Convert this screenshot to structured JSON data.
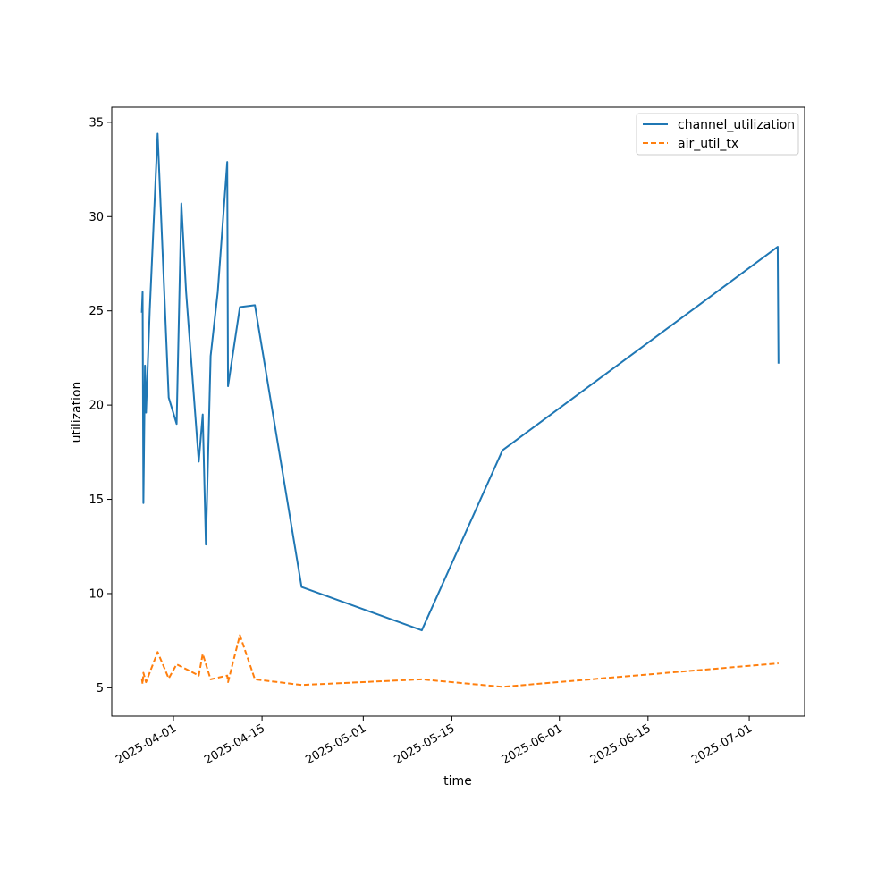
{
  "chart_data": {
    "type": "line",
    "title": "",
    "xlabel": "time",
    "ylabel": "utilization",
    "x_type": "date",
    "xlim": [
      "2025-03-22T06:00",
      "2025-07-09T18:00"
    ],
    "ylim": [
      3.5,
      35.8
    ],
    "xticks": [
      "2025-04-01",
      "2025-04-15",
      "2025-05-01",
      "2025-05-15",
      "2025-06-01",
      "2025-06-15",
      "2025-07-01"
    ],
    "xtick_labels": [
      "2025-04-01",
      "2025-04-15",
      "2025-05-01",
      "2025-05-15",
      "2025-06-01",
      "2025-06-15",
      "2025-07-01"
    ],
    "yticks": [
      5,
      10,
      15,
      20,
      25,
      30,
      35
    ],
    "ytick_labels": [
      "5",
      "10",
      "15",
      "20",
      "25",
      "30",
      "35"
    ],
    "grid": false,
    "legend": {
      "position": "top-right",
      "entries": [
        "channel_utilization",
        "air_util_tx"
      ]
    },
    "series": [
      {
        "name": "channel_utilization",
        "color": "#1f77b4",
        "style": "solid",
        "points": [
          [
            "2025-03-27T00:00",
            24.9
          ],
          [
            "2025-03-27T03:00",
            26.0
          ],
          [
            "2025-03-27T06:00",
            14.8
          ],
          [
            "2025-03-27T12:00",
            22.1
          ],
          [
            "2025-03-27T16:00",
            19.6
          ],
          [
            "2025-03-28T06:00",
            25.0
          ],
          [
            "2025-03-29T12:00",
            34.4
          ],
          [
            "2025-03-31T06:00",
            20.4
          ],
          [
            "2025-04-01T12:00",
            19.0
          ],
          [
            "2025-04-02T06:00",
            30.7
          ],
          [
            "2025-04-03T00:00",
            26.0
          ],
          [
            "2025-04-05T00:00",
            17.0
          ],
          [
            "2025-04-05T15:00",
            19.5
          ],
          [
            "2025-04-06T03:00",
            12.6
          ],
          [
            "2025-04-06T21:00",
            22.6
          ],
          [
            "2025-04-08T00:00",
            26.0
          ],
          [
            "2025-04-09T12:00",
            32.9
          ],
          [
            "2025-04-09T15:00",
            21.0
          ],
          [
            "2025-04-11T12:00",
            25.2
          ],
          [
            "2025-04-13T21:00",
            25.3
          ],
          [
            "2025-04-21T06:00",
            10.35
          ],
          [
            "2025-05-10T06:00",
            8.05
          ],
          [
            "2025-05-23T00:00",
            17.6
          ],
          [
            "2025-07-05T12:00",
            28.4
          ],
          [
            "2025-07-05T15:00",
            22.2
          ]
        ]
      },
      {
        "name": "air_util_tx",
        "color": "#ff7f0e",
        "style": "dashed",
        "points": [
          [
            "2025-03-27T00:00",
            5.5
          ],
          [
            "2025-03-27T03:00",
            5.2
          ],
          [
            "2025-03-27T06:00",
            5.8
          ],
          [
            "2025-03-27T16:00",
            5.3
          ],
          [
            "2025-03-29T12:00",
            6.9
          ],
          [
            "2025-03-31T06:00",
            5.5
          ],
          [
            "2025-04-01T12:00",
            6.25
          ],
          [
            "2025-04-05T00:00",
            5.65
          ],
          [
            "2025-04-05T15:00",
            6.8
          ],
          [
            "2025-04-06T21:00",
            5.45
          ],
          [
            "2025-04-09T12:00",
            5.65
          ],
          [
            "2025-04-09T15:00",
            5.3
          ],
          [
            "2025-04-11T12:00",
            7.8
          ],
          [
            "2025-04-13T21:00",
            5.45
          ],
          [
            "2025-04-21T06:00",
            5.15
          ],
          [
            "2025-05-10T06:00",
            5.45
          ],
          [
            "2025-05-23T00:00",
            5.05
          ],
          [
            "2025-07-05T15:00",
            6.3
          ]
        ]
      }
    ]
  }
}
